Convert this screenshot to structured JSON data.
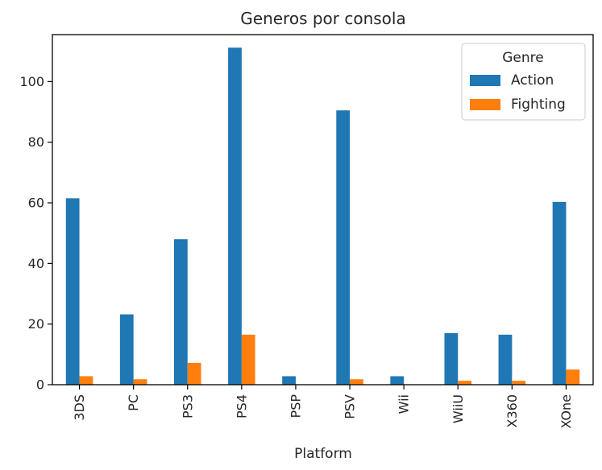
{
  "chart_data": {
    "type": "bar",
    "title": "Generos por consola",
    "xlabel": "Platform",
    "ylabel": "",
    "categories": [
      "3DS",
      "PC",
      "PS3",
      "PS4",
      "PSP",
      "PSV",
      "Wii",
      "WiiU",
      "X360",
      "XOne"
    ],
    "series": [
      {
        "name": "Action",
        "color": "#1f77b4",
        "values": [
          61.5,
          23.2,
          48,
          111.2,
          2.8,
          90.5,
          2.8,
          17,
          16.5,
          60.3
        ]
      },
      {
        "name": "Fighting",
        "color": "#ff7f0e",
        "values": [
          2.8,
          1.8,
          7.2,
          16.5,
          0,
          1.8,
          0,
          1.3,
          1.3,
          5
        ]
      }
    ],
    "ylim": [
      0,
      115.5
    ],
    "yticks": [
      0,
      20,
      40,
      60,
      80,
      100
    ],
    "grid": false,
    "legend": {
      "title": "Genre",
      "placement": "top-right"
    }
  }
}
